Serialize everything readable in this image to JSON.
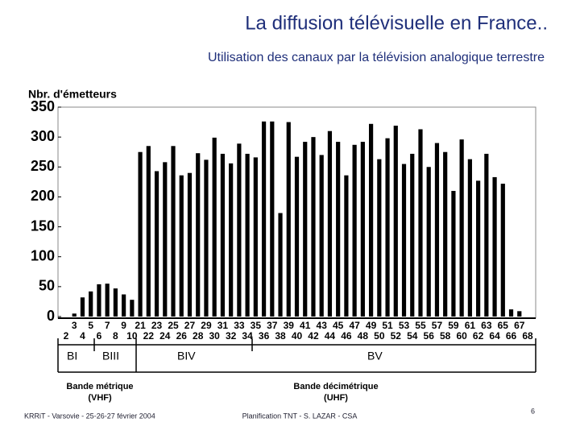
{
  "slide": {
    "title": "La diffusion télévisuelle en France..",
    "subtitle": "Utilisation des canaux par la télévision analogique terrestre",
    "footer_left": "KRRiT - Varsovie - 25-26-27 février 2004",
    "footer_center": "Planification TNT - S. LAZAR - CSA",
    "page_number": "6"
  },
  "chart_data": {
    "type": "bar",
    "y_label": "Nbr. d'émetteurs",
    "color": "#000000",
    "categories": [
      "2",
      "3",
      "4",
      "5",
      "6",
      "7",
      "8",
      "9",
      "10",
      "21",
      "22",
      "23",
      "24",
      "25",
      "26",
      "27",
      "28",
      "29",
      "30",
      "31",
      "32",
      "33",
      "34",
      "35",
      "36",
      "37",
      "38",
      "39",
      "40",
      "41",
      "42",
      "43",
      "44",
      "45",
      "46",
      "47",
      "48",
      "49",
      "50",
      "51",
      "52",
      "53",
      "54",
      "55",
      "56",
      "57",
      "58",
      "59",
      "60",
      "61",
      "62",
      "63",
      "64",
      "65",
      "66",
      "67",
      "68"
    ],
    "values": [
      0,
      5,
      32,
      42,
      54,
      55,
      47,
      37,
      28,
      275,
      285,
      243,
      258,
      285,
      236,
      240,
      273,
      262,
      299,
      272,
      256,
      289,
      272,
      266,
      326,
      326,
      173,
      325,
      267,
      292,
      300,
      270,
      310,
      292,
      236,
      287,
      292,
      322,
      263,
      298,
      319,
      255,
      272,
      313,
      250,
      290,
      275,
      210,
      296,
      263,
      227,
      272,
      233,
      222,
      12,
      9,
      0
    ],
    "ylim": [
      0,
      350
    ],
    "yticks": [
      0,
      50,
      100,
      150,
      200,
      250,
      300,
      350
    ],
    "bands": [
      "BI",
      "BIII",
      "BIV",
      "BV"
    ],
    "band_groups": [
      [
        "Bande métrique",
        "(VHF)"
      ],
      [
        "Bande décimétrique",
        "(UHF)"
      ]
    ]
  }
}
